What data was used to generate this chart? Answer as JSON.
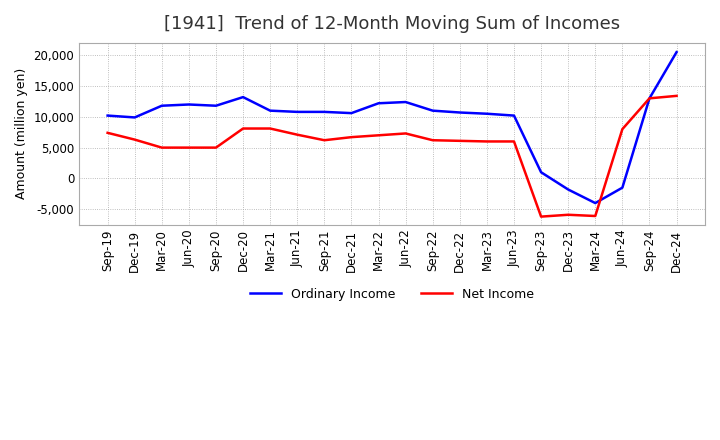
{
  "title": "[1941]  Trend of 12-Month Moving Sum of Incomes",
  "ylabel": "Amount (million yen)",
  "ylim": [
    -7500,
    22000
  ],
  "yticks": [
    -5000,
    0,
    5000,
    10000,
    15000,
    20000
  ],
  "x_labels": [
    "Sep-19",
    "Dec-19",
    "Mar-20",
    "Jun-20",
    "Sep-20",
    "Dec-20",
    "Mar-21",
    "Jun-21",
    "Sep-21",
    "Dec-21",
    "Mar-22",
    "Jun-22",
    "Sep-22",
    "Dec-22",
    "Mar-23",
    "Jun-23",
    "Sep-23",
    "Dec-23",
    "Mar-24",
    "Jun-24",
    "Sep-24",
    "Dec-24"
  ],
  "ordinary_income": [
    10200,
    9900,
    11800,
    12000,
    11800,
    13200,
    11000,
    10800,
    10800,
    10600,
    12200,
    12400,
    11000,
    10700,
    10500,
    10200,
    1000,
    -1800,
    -4000,
    -1500,
    13000,
    20500
  ],
  "net_income": [
    7400,
    6300,
    5000,
    5000,
    5000,
    8100,
    8100,
    7100,
    6200,
    6700,
    7000,
    7300,
    6200,
    6100,
    6000,
    6000,
    -6200,
    -5900,
    -6100,
    8000,
    13000,
    13400
  ],
  "ordinary_color": "#0000ff",
  "net_color": "#ff0000",
  "background_color": "#ffffff",
  "grid_color": "#aaaaaa",
  "title_fontsize": 13,
  "tick_fontsize": 8.5,
  "ylabel_fontsize": 9,
  "legend_fontsize": 9
}
